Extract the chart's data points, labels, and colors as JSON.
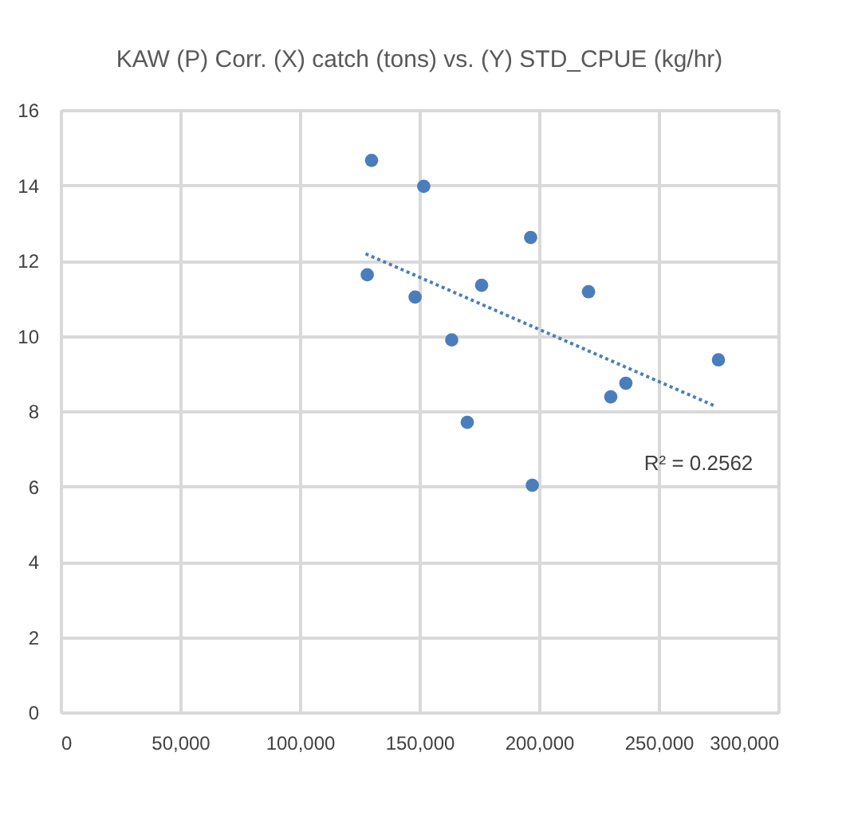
{
  "chart_data": {
    "type": "scatter",
    "title": "KAW (P) Corr. (X) catch (tons) vs. (Y) STD_CPUE (kg/hr)",
    "series": [
      {
        "color": "#4a7ebb",
        "marker": "circle",
        "x": [
          130000,
          151800,
          196500,
          128200,
          176000,
          220700,
          148200,
          163500,
          275000,
          236300,
          230000,
          170000,
          197200
        ],
        "values": [
          14.66,
          13.97,
          12.61,
          11.62,
          11.34,
          11.17,
          11.03,
          9.89,
          9.36,
          8.74,
          8.38,
          7.7,
          6.03
        ]
      },
      {
        "type": "line",
        "color": "#4a7ebb",
        "line_style": "dotted",
        "x": [
          127500,
          273000
        ],
        "values": [
          12.18,
          8.15
        ]
      }
    ],
    "annotations": [
      "R² = 0.2562"
    ],
    "xlim": [
      0,
      300000
    ],
    "xticks": [
      {
        "value": 0,
        "label": "0"
      },
      {
        "value": 50000,
        "label": "50,000"
      },
      {
        "value": 100000,
        "label": "100,000"
      },
      {
        "value": 150000,
        "label": "150,000"
      },
      {
        "value": 200000,
        "label": "200,000"
      },
      {
        "value": 250000,
        "label": "250,000"
      },
      {
        "value": 300000,
        "label": "300,000"
      }
    ],
    "ylim": [
      0,
      16
    ],
    "yticks": [
      0,
      2,
      4,
      6,
      8,
      10,
      12,
      14,
      16
    ],
    "grid": true
  }
}
